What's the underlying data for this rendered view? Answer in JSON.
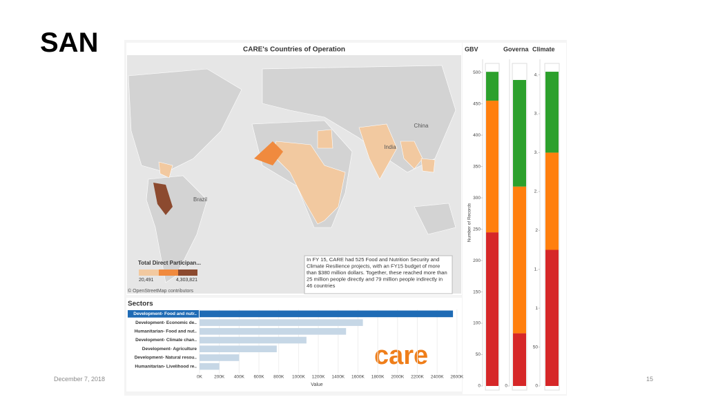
{
  "title": "SAN",
  "date": "December 7, 2018",
  "page_number": "15",
  "logo": "care",
  "map": {
    "title": "CARE's Countries of Operation",
    "labels": [
      "China",
      "India",
      "Brazil"
    ],
    "legend_title": "Total Direct Participan...",
    "legend_min": "20,491",
    "legend_max": "4,303,821",
    "attribution": "© OpenStreetMap contributors",
    "annotation": [
      "In FY 15, CARE had 525 Food and Nutrition Security and",
      "Climate Resilience projects, with an FY15 budget of more",
      "than $380 million dollars.  Together, these reached more than",
      "25 million people directly and 79 million people indirectly in",
      "46 countries"
    ]
  },
  "chart_data": [
    {
      "type": "hbar",
      "title": "Sectors",
      "xlabel": "Value",
      "categories": [
        "Development- Food and nutr..",
        "Development- Economic de..",
        "Humanitarian- Food and nut..",
        "Development- Climate chan..",
        "Development- Agriculture",
        "Development- Natural resou..",
        "Humanitarian- Livelihood re.."
      ],
      "values": [
        2560000,
        1650000,
        1480000,
        1080000,
        780000,
        400000,
        200000
      ],
      "colors": [
        "#1f6bb5",
        "#c6d7e6",
        "#c6d7e6",
        "#c6d7e6",
        "#c6d7e6",
        "#c6d7e6",
        "#c6d7e6"
      ],
      "xlim": [
        0,
        2650000
      ],
      "xticks": [
        {
          "value": 0,
          "label": "0K"
        },
        {
          "value": 200000,
          "label": "200K"
        },
        {
          "value": 400000,
          "label": "400K"
        },
        {
          "value": 600000,
          "label": "600K"
        },
        {
          "value": 800000,
          "label": "800K"
        },
        {
          "value": 1000000,
          "label": "1000K"
        },
        {
          "value": 1200000,
          "label": "1200K"
        },
        {
          "value": 1400000,
          "label": "1400K"
        },
        {
          "value": 1600000,
          "label": "1600K"
        },
        {
          "value": 1800000,
          "label": "1800K"
        },
        {
          "value": 2000000,
          "label": "2000K"
        },
        {
          "value": 2200000,
          "label": "2200K"
        },
        {
          "value": 2400000,
          "label": "2400K"
        },
        {
          "value": 2600000,
          "label": "2600K"
        }
      ]
    },
    {
      "type": "stacked_bar",
      "title": "GBV",
      "ylabel": "Number of Records",
      "series": [
        {
          "color": "#d62728",
          "values": [
            245
          ]
        },
        {
          "color": "#ff7f0e",
          "values": [
            210
          ]
        },
        {
          "color": "#2ca02c",
          "values": [
            46
          ]
        }
      ],
      "ylim": [
        0,
        521
      ],
      "yticks": [
        0,
        50,
        100,
        150,
        200,
        250,
        300,
        350,
        400,
        450,
        500
      ]
    },
    {
      "type": "stacked_bar",
      "title": "Governa",
      "series": [
        {
          "color": "#d62728",
          "values": [
            84
          ]
        },
        {
          "color": "#ff7f0e",
          "values": [
            234
          ]
        },
        {
          "color": "#2ca02c",
          "values": [
            170
          ]
        }
      ],
      "ylim": [
        0,
        521
      ],
      "yticks": [
        0
      ]
    },
    {
      "type": "stacked_bar",
      "title": "Climate",
      "series": [
        {
          "color": "#d62728",
          "values": [
            175
          ]
        },
        {
          "color": "#ff7f0e",
          "values": [
            125
          ]
        },
        {
          "color": "#2ca02c",
          "values": [
            104
          ]
        }
      ],
      "ylim": [
        0,
        420
      ],
      "yticks": [
        0,
        50,
        {
          "value": 100,
          "label": "1"
        },
        {
          "value": 150,
          "label": "1."
        },
        {
          "value": 200,
          "label": "2"
        },
        {
          "value": 250,
          "label": "2."
        },
        {
          "value": 300,
          "label": "3."
        },
        {
          "value": 350,
          "label": "3."
        },
        {
          "value": 400,
          "label": "4."
        }
      ]
    }
  ]
}
